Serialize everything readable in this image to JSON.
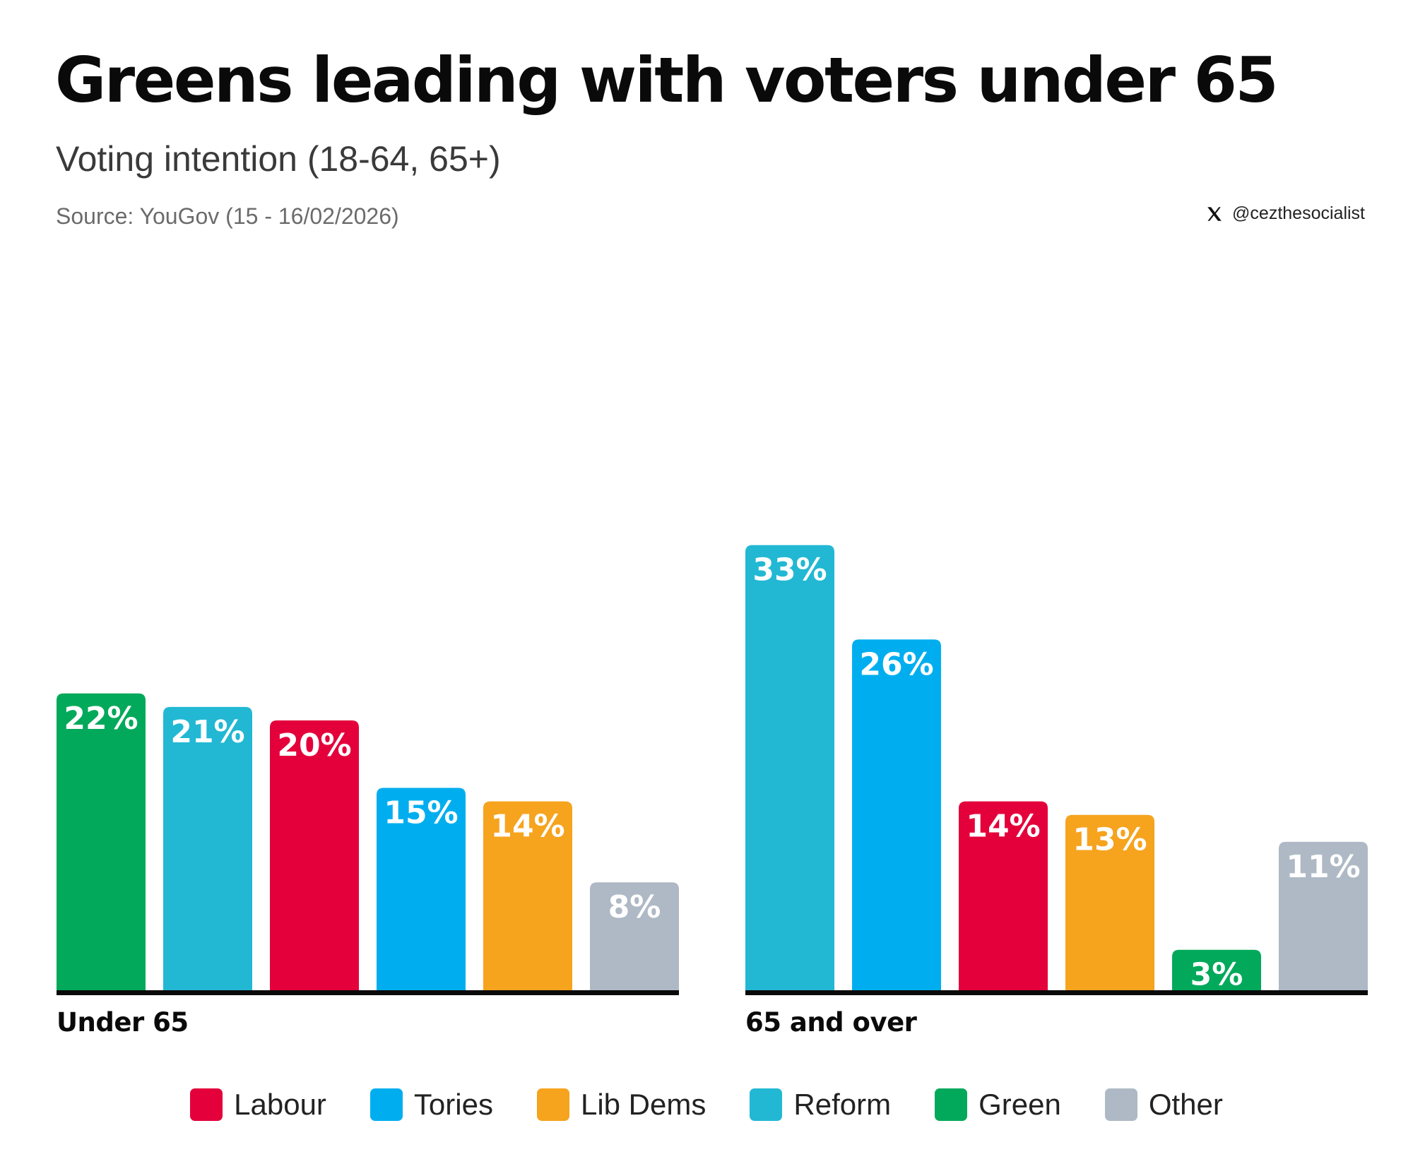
{
  "header": {
    "title": "Greens leading with voters under 65",
    "subtitle": "Voting intention (18-64, 65+)",
    "source": "Source: YouGov (15 - 16/02/2026)",
    "credit_handle": "@cezthesocialist",
    "credit_icon": "x-logo-icon"
  },
  "colors": {
    "Labour": "#e4003b",
    "Tories": "#00aeef",
    "Lib Dems": "#f6a31e",
    "Reform": "#22b8d3",
    "Green": "#02a95b",
    "Other": "#aeb9c5",
    "axis": "#0a0a0a"
  },
  "legend": [
    "Labour",
    "Tories",
    "Lib Dems",
    "Reform",
    "Green",
    "Other"
  ],
  "chart_data": [
    {
      "type": "bar",
      "group": "Under 65",
      "categories": [
        "Green",
        "Reform",
        "Labour",
        "Tories",
        "Lib Dems",
        "Other"
      ],
      "values": [
        22,
        21,
        20,
        15,
        14,
        8
      ],
      "value_labels": [
        "22%",
        "21%",
        "20%",
        "15%",
        "14%",
        "8%"
      ],
      "ylim": [
        0,
        34
      ],
      "grid": false,
      "legend_position": "bottom"
    },
    {
      "type": "bar",
      "group": "65 and over",
      "categories": [
        "Reform",
        "Tories",
        "Labour",
        "Lib Dems",
        "Green",
        "Other"
      ],
      "values": [
        33,
        26,
        14,
        13,
        3,
        11
      ],
      "value_labels": [
        "33%",
        "26%",
        "14%",
        "13%",
        "3%",
        "11%"
      ],
      "ylim": [
        0,
        34
      ],
      "grid": false,
      "legend_position": "bottom"
    }
  ]
}
